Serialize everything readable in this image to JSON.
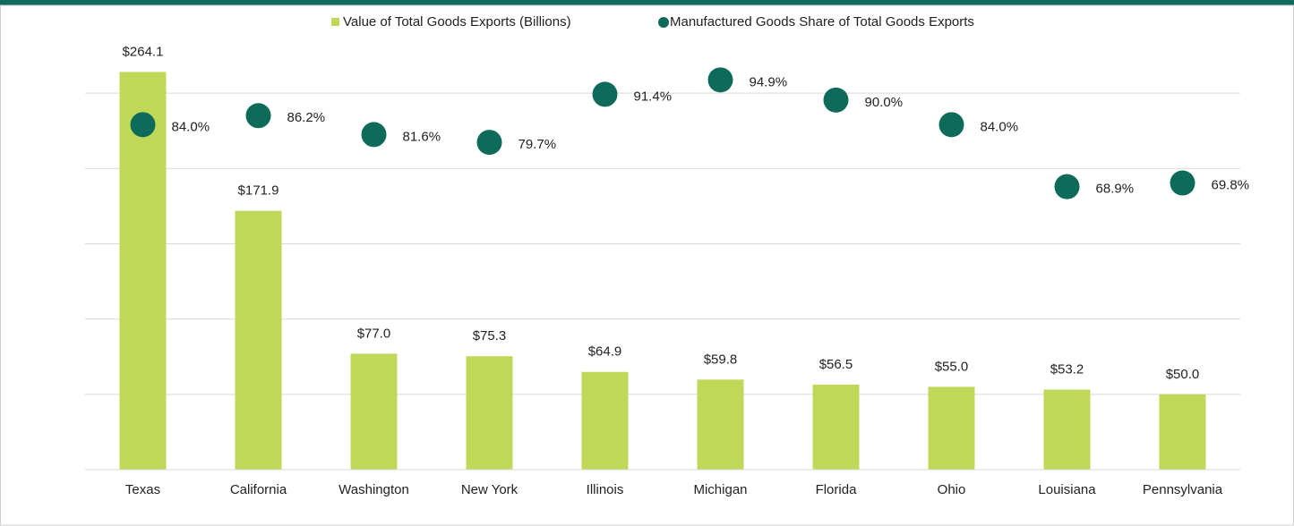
{
  "chart_data": {
    "type": "bar",
    "categories": [
      "Texas",
      "California",
      "Washington",
      "New York",
      "Illinois",
      "Michigan",
      "Florida",
      "Ohio",
      "Louisiana",
      "Pennsylvania"
    ],
    "series": [
      {
        "name": "Value of Total Goods Exports (Billions)",
        "type": "bar",
        "color": "#bfd857",
        "values": [
          264.1,
          171.9,
          77.0,
          75.3,
          64.9,
          59.8,
          56.5,
          55.0,
          53.2,
          50.0
        ],
        "value_labels": [
          "$264.1",
          "$171.9",
          "$77.0",
          "$75.3",
          "$64.9",
          "$59.8",
          "$56.5",
          "$55.0",
          "$53.2",
          "$50.0"
        ]
      },
      {
        "name": "Manufactured Goods Share of Total Goods Exports",
        "type": "scatter",
        "axis": "y2",
        "color": "#0e6b5a",
        "values": [
          84.0,
          86.2,
          81.6,
          79.7,
          91.4,
          94.9,
          90.0,
          84.0,
          68.9,
          69.8
        ],
        "value_labels": [
          "84.0%",
          "86.2%",
          "81.6%",
          "79.7%",
          "91.4%",
          "94.9%",
          "90.0%",
          "84.0%",
          "68.9%",
          "69.8%"
        ]
      }
    ],
    "ylim": [
      0,
      300
    ],
    "yticks": [
      0,
      50,
      100,
      150,
      200,
      250
    ],
    "y2lim": [
      0,
      110
    ],
    "grid": true,
    "legend": "top"
  }
}
